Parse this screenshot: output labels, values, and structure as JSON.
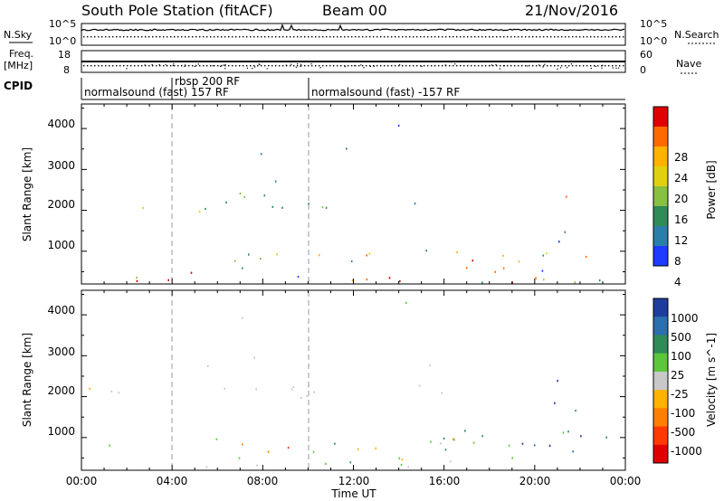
{
  "header": {
    "title": "South Pole Station (fitACF)",
    "beam": "Beam 00",
    "date": "21/Nov/2016"
  },
  "top_panels": {
    "nsky_label": "N.Sky",
    "nsearch_label": "N.Search",
    "nsky_ticks": [
      "10^5",
      "10^0"
    ],
    "nsearch_ticks": [
      "10^5",
      "10^0"
    ],
    "freq_label_1": "Freq.",
    "freq_label_2": "[MHz]",
    "freq_ticks": [
      "18",
      "8"
    ],
    "nave_label": "Nave",
    "nave_ticks": [
      "60",
      "0"
    ],
    "cpid_label": "CPID",
    "cpid_segments": [
      {
        "label": "normalsound (fast) 157 RF"
      },
      {
        "label": "rbsp 200 RF"
      },
      {
        "label": "normalsound (fast) -157 RF"
      }
    ]
  },
  "chart_data": [
    {
      "type": "heatmap",
      "title": "",
      "xlabel": "Time UT",
      "ylabel": "Slant Range [km]",
      "xticks": [
        "00:00",
        "04:00",
        "08:00",
        "12:00",
        "16:00",
        "20:00",
        "00:00"
      ],
      "yticks": [
        "1000",
        "2000",
        "3000",
        "4000"
      ],
      "ylim": [
        200,
        4600
      ],
      "colorbar_label": "Power [dB]",
      "colorbar_ticks": [
        "28",
        "24",
        "20",
        "16",
        "12",
        "8",
        "4"
      ],
      "colorbar_colors": [
        "#e00000",
        "#ff6a00",
        "#ffb200",
        "#e0d010",
        "#88c040",
        "#2e8b57",
        "#2a7faa",
        "#1e3cff"
      ]
    },
    {
      "type": "heatmap",
      "title": "",
      "xlabel": "Time UT",
      "ylabel": "Slant Range [km]",
      "xticks": [
        "00:00",
        "04:00",
        "08:00",
        "12:00",
        "16:00",
        "20:00",
        "00:00"
      ],
      "yticks": [
        "1000",
        "2000",
        "3000",
        "4000"
      ],
      "ylim": [
        200,
        4600
      ],
      "colorbar_label": "Velocity [m s^-1]",
      "colorbar_ticks": [
        "1000",
        "500",
        "100",
        "25",
        "-25",
        "-100",
        "-500",
        "-1000"
      ],
      "colorbar_colors": [
        "#1e3ca0",
        "#2a6fb0",
        "#2e8b57",
        "#5ac83a",
        "#c8c8c8",
        "#ffb200",
        "#ff8000",
        "#ff3a00",
        "#e00000"
      ]
    }
  ]
}
